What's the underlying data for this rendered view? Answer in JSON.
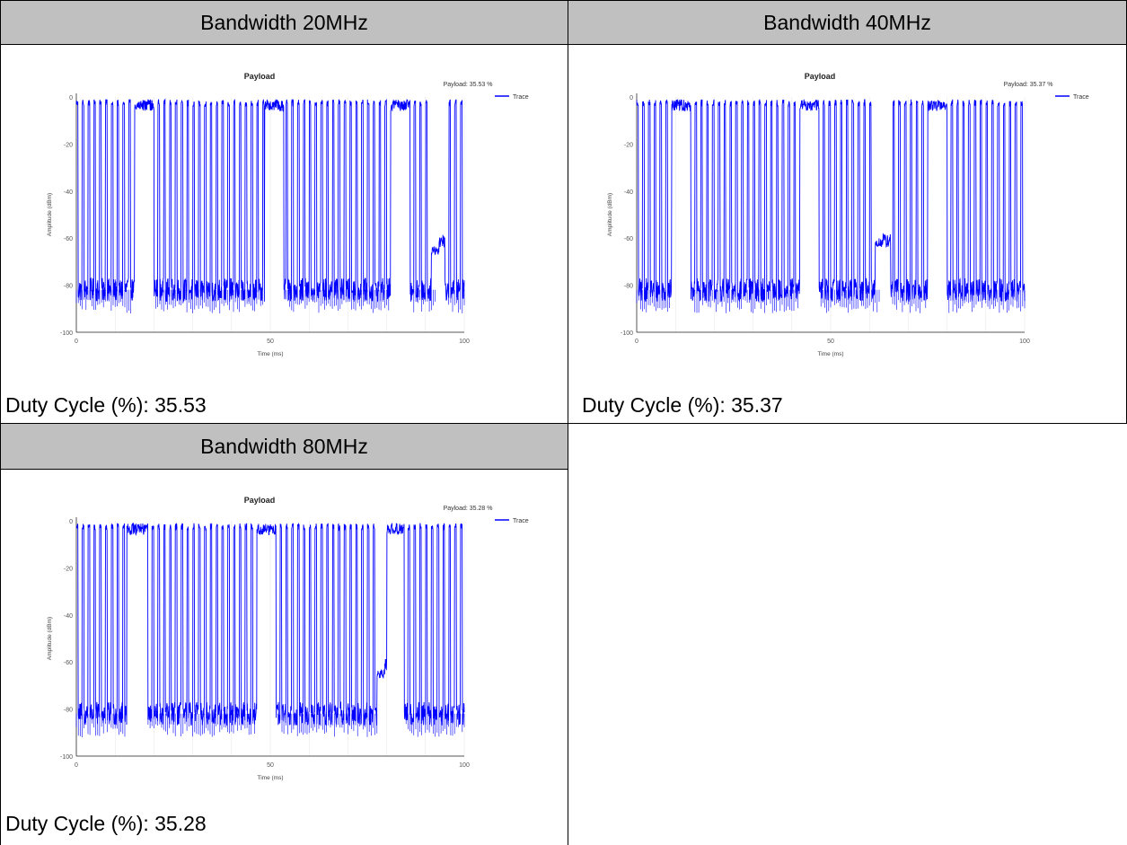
{
  "panels": [
    {
      "header": "Bandwidth 20MHz",
      "duty_label": "Duty Cycle (%): 35.53"
    },
    {
      "header": "Bandwidth 40MHz",
      "duty_label": "Duty Cycle (%): 35.37"
    },
    {
      "header": "Bandwidth 80MHz",
      "duty_label": "Duty Cycle (%): 35.28"
    }
  ],
  "colors": {
    "trace": "#0000ff",
    "header_bg": "#c0c0c0",
    "grid": "#e4e4e4"
  },
  "chart_data": [
    {
      "type": "line",
      "title": "Payload",
      "annotation": "Payload: 35.53 %",
      "xlabel": "Time (ms)",
      "ylabel": "Amplitude (dBm)",
      "xlim": [
        0,
        100
      ],
      "ylim": [
        -100,
        0
      ],
      "x_ticks": [
        "0",
        "50",
        "100"
      ],
      "y_ticks": [
        "0",
        "-20",
        "-40",
        "-60",
        "-80",
        "-100"
      ],
      "legend": "top-right",
      "series": [
        {
          "name": "Trace"
        }
      ],
      "noise_floor": -82,
      "peak": -1,
      "burst_period_ms": 1.5,
      "long_bursts_ms": [
        [
          15,
          20
        ],
        [
          48.5,
          53.5
        ],
        [
          81,
          86
        ]
      ],
      "gaps_ms": [
        [
          93,
          95
        ]
      ],
      "plateau": {
        "x": [
          91.5,
          93.5
        ],
        "y": -65
      },
      "end_ms": 100
    },
    {
      "type": "line",
      "title": "Payload",
      "annotation": "Payload: 35.37 %",
      "xlabel": "Time (ms)",
      "ylabel": "Amplitude (dBm)",
      "xlim": [
        0,
        100
      ],
      "ylim": [
        -100,
        0
      ],
      "x_ticks": [
        "0",
        "50",
        "100"
      ],
      "y_ticks": [
        "0",
        "-20",
        "-40",
        "-60",
        "-80",
        "-100"
      ],
      "legend": "top-right",
      "series": [
        {
          "name": "Trace"
        }
      ],
      "noise_floor": -82,
      "peak": -1,
      "burst_period_ms": 1.5,
      "long_bursts_ms": [
        [
          9,
          14
        ],
        [
          42,
          47
        ],
        [
          75,
          80
        ]
      ],
      "gaps_ms": [
        [
          63,
          65.5
        ]
      ],
      "plateau": {
        "x": [
          61.5,
          63.5
        ],
        "y": -62
      },
      "end_ms": 100
    },
    {
      "type": "line",
      "title": "Payload",
      "annotation": "Payload: 35.28 %",
      "xlabel": "Time (ms)",
      "ylabel": "Amplitude (dBm)",
      "xlim": [
        0,
        100
      ],
      "ylim": [
        -100,
        0
      ],
      "x_ticks": [
        "0",
        "50",
        "100"
      ],
      "y_ticks": [
        "0",
        "-20",
        "-40",
        "-60",
        "-80",
        "-100"
      ],
      "legend": "top-right",
      "series": [
        {
          "name": "Trace"
        }
      ],
      "noise_floor": -82,
      "peak": -1,
      "burst_period_ms": 1.5,
      "long_bursts_ms": [
        [
          13,
          18
        ],
        [
          46.5,
          51.5
        ],
        [
          79.5,
          84.5
        ]
      ],
      "gaps_ms": [
        [
          78,
          80
        ]
      ],
      "plateau": {
        "x": [
          77.5,
          79.5
        ],
        "y": -65
      },
      "end_ms": 100
    }
  ]
}
